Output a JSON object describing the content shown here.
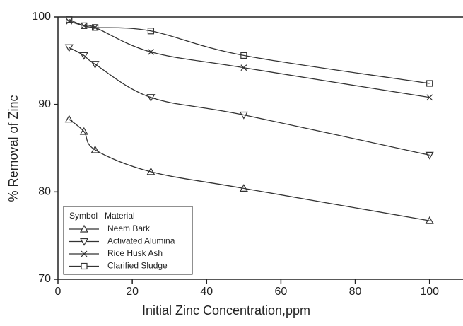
{
  "chart_data": {
    "type": "line",
    "xlabel": "Initial Zinc Concentration,ppm",
    "ylabel": "% Removal of Zinc",
    "x": [
      3,
      7,
      10,
      25,
      50,
      100
    ],
    "series": [
      {
        "name": "Neem Bark",
        "marker": "triangle-up",
        "color": "#333333",
        "values": [
          88.3,
          86.9,
          84.8,
          82.3,
          80.4,
          76.7
        ]
      },
      {
        "name": "Activated Alumina",
        "marker": "triangle-down",
        "color": "#333333",
        "values": [
          96.5,
          95.6,
          94.6,
          90.8,
          88.8,
          84.2
        ]
      },
      {
        "name": "Rice Husk Ash",
        "marker": "x",
        "color": "#333333",
        "values": [
          99.5,
          99.0,
          98.8,
          96.0,
          94.2,
          90.8
        ]
      },
      {
        "name": "Clarified Sludge",
        "marker": "square",
        "color": "#333333",
        "values": [
          99.7,
          99.0,
          98.8,
          98.4,
          95.6,
          92.4
        ]
      }
    ],
    "legend_header": [
      "Symbol",
      "Material"
    ],
    "legend": "lower left",
    "xlim": [
      0,
      109
    ],
    "ylim": [
      70,
      100
    ],
    "xticks": [
      0,
      20,
      40,
      60,
      80,
      100
    ],
    "yticks": [
      70,
      80,
      90,
      100
    ]
  }
}
